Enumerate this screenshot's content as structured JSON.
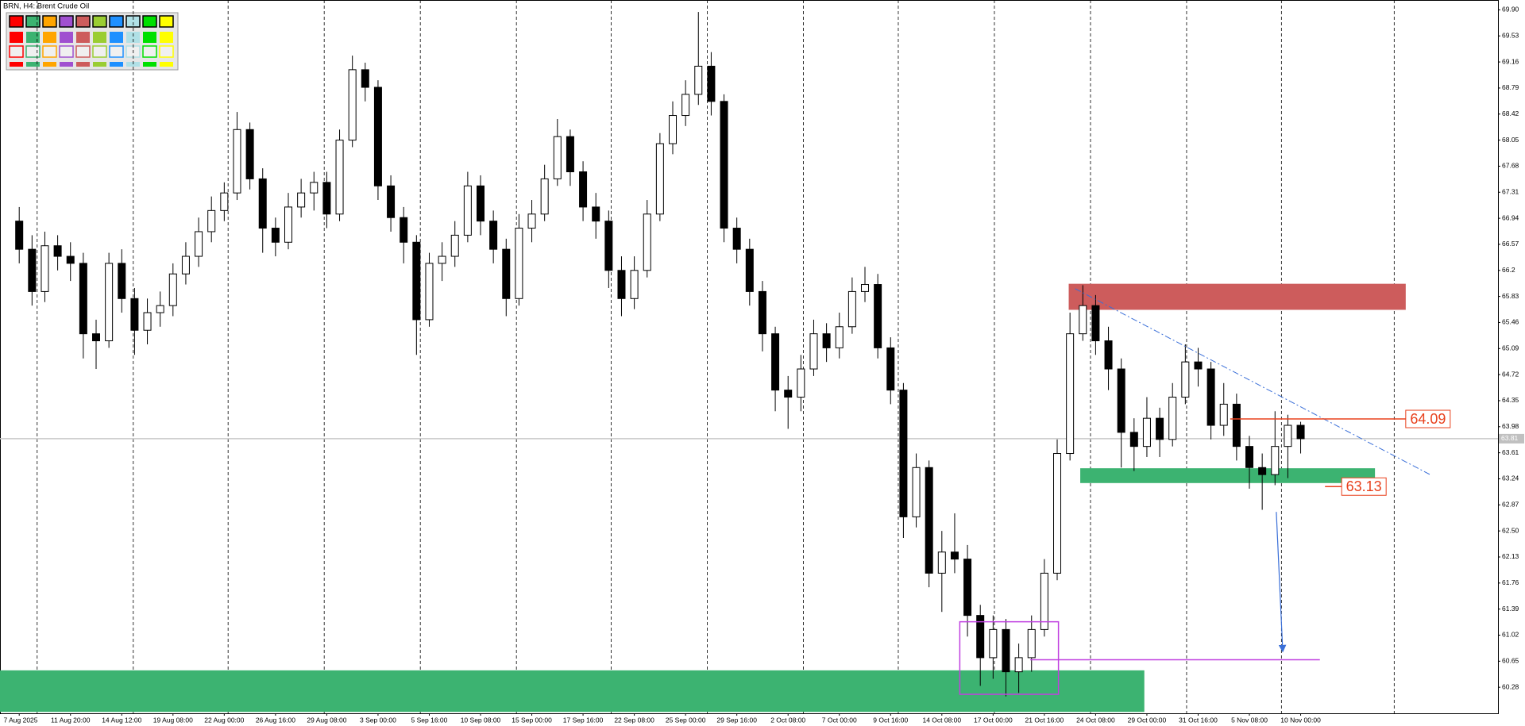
{
  "chart_data": {
    "type": "candlestick",
    "title": "BRN, H4: Brent Crude Oil",
    "open": [
      66.9,
      66.5,
      65.9,
      66.55,
      66.4,
      66.3,
      65.3,
      65.2,
      66.3,
      65.8,
      65.35,
      65.6,
      65.7,
      66.15,
      66.4,
      66.75,
      67.05,
      67.3,
      68.2,
      67.5,
      66.8,
      66.6,
      67.1,
      67.3,
      67.45,
      67.0,
      68.05,
      69.05,
      68.8,
      67.4,
      66.95,
      66.6,
      65.5,
      66.3,
      66.4,
      66.7,
      67.4,
      66.9,
      66.5,
      65.8,
      66.8,
      67.0,
      67.5,
      68.1,
      67.6,
      67.1,
      66.9,
      66.2,
      65.8,
      66.2,
      67.0,
      68.0,
      68.4,
      68.7,
      69.1,
      68.6,
      66.8,
      66.5,
      65.9,
      65.3,
      64.5,
      64.4,
      64.8,
      65.3,
      65.1,
      65.4,
      65.9,
      66.0,
      65.1,
      64.5,
      62.7,
      63.4,
      61.9,
      62.2,
      62.1,
      61.3,
      60.7,
      61.1,
      60.5,
      60.7,
      61.1,
      61.9,
      63.6,
      65.3,
      65.7,
      65.2,
      64.8,
      63.9,
      63.7,
      64.1,
      63.8,
      64.4,
      64.9,
      64.8,
      64.0,
      64.3,
      63.7,
      63.4,
      63.3,
      63.7,
      64.0
    ],
    "high": [
      67.1,
      66.7,
      66.75,
      66.7,
      66.6,
      66.45,
      65.5,
      66.45,
      66.5,
      65.95,
      65.8,
      65.9,
      66.3,
      66.6,
      66.95,
      67.25,
      67.45,
      68.45,
      68.3,
      67.65,
      66.95,
      67.3,
      67.5,
      67.6,
      67.6,
      68.2,
      69.25,
      69.15,
      68.9,
      67.55,
      67.1,
      66.7,
      66.45,
      66.6,
      66.9,
      67.6,
      67.55,
      67.05,
      66.65,
      67.0,
      67.2,
      67.7,
      68.35,
      68.2,
      67.75,
      67.3,
      67.05,
      66.4,
      66.4,
      67.2,
      68.15,
      68.6,
      68.9,
      69.87,
      69.3,
      68.7,
      66.95,
      66.65,
      66.05,
      65.4,
      64.7,
      65.0,
      65.5,
      65.45,
      65.6,
      66.1,
      66.25,
      66.15,
      65.25,
      64.6,
      63.6,
      63.5,
      62.5,
      62.75,
      62.3,
      61.45,
      61.3,
      61.25,
      60.9,
      61.3,
      62.1,
      63.8,
      65.6,
      65.99,
      65.85,
      65.4,
      64.95,
      64.1,
      64.4,
      64.25,
      64.6,
      65.15,
      65.1,
      64.9,
      64.6,
      64.45,
      63.85,
      63.6,
      64.2,
      64.15,
      64.05
    ],
    "low": [
      66.3,
      65.7,
      65.75,
      66.2,
      66.05,
      64.95,
      64.8,
      65.1,
      65.6,
      65.0,
      65.15,
      65.4,
      65.55,
      66.0,
      66.25,
      66.6,
      66.9,
      67.2,
      67.35,
      66.45,
      66.4,
      66.5,
      66.95,
      67.05,
      66.8,
      66.9,
      67.95,
      68.6,
      67.2,
      66.75,
      66.3,
      65.0,
      65.4,
      66.05,
      66.25,
      66.6,
      66.7,
      66.3,
      65.55,
      65.7,
      66.6,
      66.9,
      67.4,
      67.4,
      66.9,
      66.65,
      65.95,
      65.55,
      65.65,
      66.1,
      66.9,
      67.85,
      68.25,
      68.55,
      68.4,
      66.6,
      66.3,
      65.7,
      65.05,
      64.2,
      63.95,
      64.2,
      64.7,
      64.9,
      64.95,
      65.3,
      65.75,
      64.95,
      64.3,
      62.4,
      62.55,
      61.7,
      61.35,
      61.9,
      61.0,
      60.3,
      60.4,
      60.15,
      60.2,
      60.5,
      61.0,
      61.8,
      63.5,
      65.2,
      65.0,
      64.5,
      63.4,
      63.35,
      63.55,
      63.55,
      63.7,
      64.3,
      64.55,
      63.8,
      63.85,
      63.5,
      63.1,
      62.8,
      63.15,
      63.25,
      63.6
    ],
    "close": [
      66.5,
      65.9,
      66.55,
      66.4,
      66.3,
      65.3,
      65.2,
      66.3,
      65.8,
      65.35,
      65.6,
      65.7,
      66.15,
      66.4,
      66.75,
      67.05,
      67.3,
      68.2,
      67.5,
      66.8,
      66.6,
      67.1,
      67.3,
      67.45,
      67.0,
      68.05,
      69.05,
      68.8,
      67.4,
      66.95,
      66.6,
      65.5,
      66.3,
      66.4,
      66.7,
      67.4,
      66.9,
      66.5,
      65.8,
      66.8,
      67.0,
      67.5,
      68.1,
      67.6,
      67.1,
      66.9,
      66.2,
      65.8,
      66.2,
      67.0,
      68.0,
      68.4,
      68.7,
      69.1,
      68.6,
      66.8,
      66.5,
      65.9,
      65.3,
      64.5,
      64.4,
      64.8,
      65.3,
      65.1,
      65.4,
      65.9,
      66.0,
      65.1,
      64.5,
      62.7,
      63.4,
      61.9,
      62.2,
      62.1,
      61.3,
      60.7,
      61.1,
      60.5,
      60.7,
      61.1,
      61.9,
      63.6,
      65.3,
      65.7,
      65.2,
      64.8,
      63.9,
      63.7,
      64.1,
      63.8,
      64.4,
      64.9,
      64.8,
      64.0,
      64.3,
      63.7,
      63.4,
      63.3,
      63.7,
      64.0,
      63.81
    ],
    "xlim": [
      -1.5,
      115.4
    ],
    "ylim": [
      59.91,
      70.04
    ],
    "xticks": [
      {
        "value": 0,
        "label": "7 Aug 2025"
      },
      {
        "value": 4,
        "label": "11 Aug 20:00"
      },
      {
        "value": 8,
        "label": "14 Aug 12:00"
      },
      {
        "value": 12,
        "label": "19 Aug 08:00"
      },
      {
        "value": 16,
        "label": "22 Aug 00:00"
      },
      {
        "value": 20,
        "label": "26 Aug 16:00"
      },
      {
        "value": 24,
        "label": "29 Aug 08:00"
      },
      {
        "value": 28,
        "label": "3 Sep 00:00"
      },
      {
        "value": 32,
        "label": "5 Sep 16:00"
      },
      {
        "value": 36,
        "label": "10 Sep 08:00"
      },
      {
        "value": 40,
        "label": "15 Sep 00:00"
      },
      {
        "value": 44,
        "label": "17 Sep 16:00"
      },
      {
        "value": 48,
        "label": "22 Sep 08:00"
      },
      {
        "value": 52,
        "label": "25 Sep 00:00"
      },
      {
        "value": 56,
        "label": "29 Sep 16:00"
      },
      {
        "value": 60,
        "label": "2 Oct 08:00"
      },
      {
        "value": 64,
        "label": "7 Oct 00:00"
      },
      {
        "value": 68,
        "label": "9 Oct 16:00"
      },
      {
        "value": 72,
        "label": "14 Oct 08:00"
      },
      {
        "value": 76,
        "label": "17 Oct 00:00"
      },
      {
        "value": 80,
        "label": "21 Oct 16:00"
      },
      {
        "value": 84,
        "label": "24 Oct 08:00"
      },
      {
        "value": 88,
        "label": "29 Oct 00:00"
      },
      {
        "value": 92,
        "label": "31 Oct 16:00"
      },
      {
        "value": 96,
        "label": "5 Nov 08:00"
      },
      {
        "value": 100,
        "label": "10 Nov 00:00"
      }
    ],
    "yticks": [
      {
        "value": 69.9,
        "label": "69.90"
      },
      69.53,
      69.16,
      68.79,
      68.42,
      68.05,
      67.68,
      67.31,
      66.94,
      66.57,
      66.2,
      65.83,
      65.46,
      65.09,
      64.72,
      64.35,
      63.98,
      63.61,
      63.24,
      62.87,
      {
        "value": 62.5,
        "label": "62.50"
      },
      62.13,
      61.76,
      61.39,
      61.02,
      60.65,
      60.28
    ],
    "grid": true,
    "separators": [
      1.4,
      8.9,
      16.3,
      23.8,
      31.3,
      38.8,
      46.2,
      53.7,
      61.2,
      68.6,
      76.1,
      83.6,
      91.1,
      98.5,
      107.3
    ],
    "current_price": 63.81,
    "zones": [
      {
        "x": [
          81.9,
          108.2
        ],
        "y": [
          65.64,
          66.01
        ],
        "color": "#cd5c5c"
      },
      {
        "x": [
          82.8,
          105.8
        ],
        "y": [
          63.18,
          63.39
        ],
        "color": "#3cb371"
      },
      {
        "x": [
          -1.5,
          87.8
        ],
        "y": [
          59.93,
          60.52
        ],
        "color": "#3cb371"
      }
    ],
    "levels": [
      {
        "value": 64.09,
        "x": [
          94.5,
          108.2
        ],
        "color": "#e8401c"
      },
      {
        "value": 63.13,
        "x": [
          101.9,
          103.2
        ],
        "color": "#e8401c"
      }
    ],
    "box": {
      "x": [
        73.4,
        81.1
      ],
      "y": [
        60.18,
        61.21
      ],
      "color": "#c040e0"
    },
    "hline": {
      "value": 60.67,
      "x": [
        78.9,
        101.5
      ],
      "color": "#c040e0"
    },
    "trendline": {
      "x": [
        82.4,
        110.1
      ],
      "y": [
        65.94,
        63.3
      ],
      "color": "#3a6fd8"
    },
    "arrow": {
      "x": [
        98.1,
        98.6
      ],
      "y": [
        62.77,
        60.8
      ],
      "color": "#3a6fd8"
    }
  }
}
